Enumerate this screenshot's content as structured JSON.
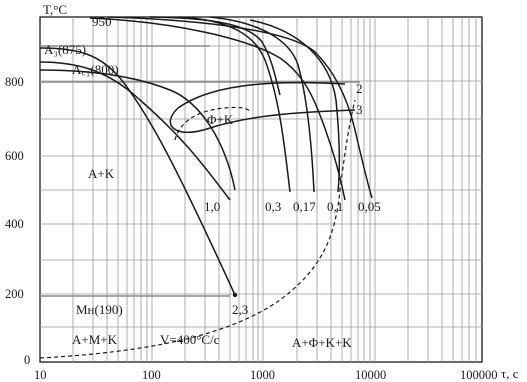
{
  "diagram": {
    "y_axis_label": "T,°C",
    "x_axis_label": "τ, c",
    "y_ticks": [
      "800",
      "600",
      "400",
      "200",
      "0"
    ],
    "x_ticks": [
      "10",
      "100",
      "1000",
      "10000",
      "100000"
    ],
    "labels": {
      "t950": "950",
      "a3": "A₃(875)",
      "a1": "A꜀₁(800)",
      "phase_ak": "A+K",
      "phase_fk": "Φ+K",
      "ms": "Mн(190)",
      "phase_amk": "A+M+K",
      "v_crit": "V=400°C/c",
      "phase_afkk": "A+Φ+K+K",
      "pt_23": "2,3",
      "curve_2": "2",
      "curve_3": "3"
    },
    "cooling_rates": [
      "1,0",
      "0,3",
      "0,17",
      "0,1",
      "0,05"
    ],
    "colors": {
      "ink": "#1a1a1a",
      "grid": "#9a9a9a",
      "guide": "#8a8a8a"
    }
  }
}
